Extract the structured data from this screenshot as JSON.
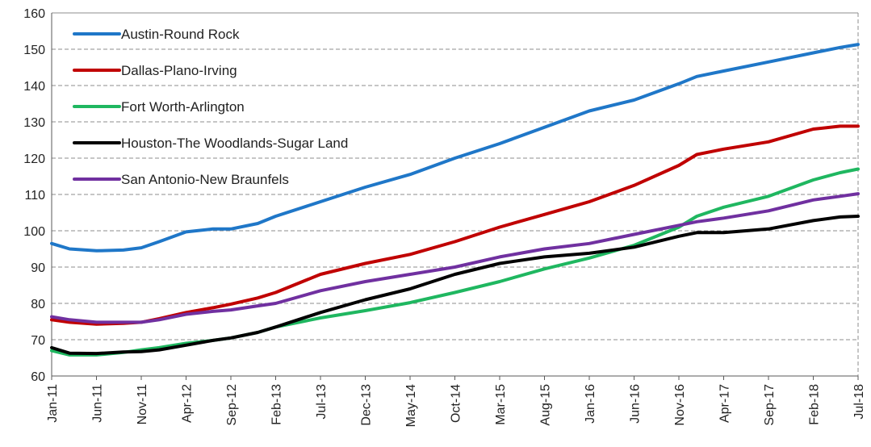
{
  "chart_data": {
    "type": "line",
    "title": "",
    "xlabel": "",
    "ylabel": "",
    "ylim": [
      60,
      160
    ],
    "yticks": [
      60,
      70,
      80,
      90,
      100,
      110,
      120,
      130,
      140,
      150,
      160
    ],
    "grid": "horizontal dashed",
    "legend_position": "top-left",
    "x_tick_labels": [
      "Jan-11",
      "Jun-11",
      "Nov-11",
      "Apr-12",
      "Sep-12",
      "Feb-13",
      "Jul-13",
      "Dec-13",
      "May-14",
      "Oct-14",
      "Mar-15",
      "Aug-15",
      "Jan-16",
      "Jun-16",
      "Nov-16",
      "Apr-17",
      "Sep-17",
      "Feb-18",
      "Jul-18"
    ],
    "x": [
      "Jan-11",
      "Mar-11",
      "Jun-11",
      "Sep-11",
      "Nov-11",
      "Jan-12",
      "Apr-12",
      "Jul-12",
      "Sep-12",
      "Dec-12",
      "Feb-13",
      "Jul-13",
      "Dec-13",
      "May-14",
      "Oct-14",
      "Mar-15",
      "Aug-15",
      "Jan-16",
      "Jun-16",
      "Nov-16",
      "Jan-17",
      "Apr-17",
      "Sep-17",
      "Feb-18",
      "May-18",
      "Jul-18"
    ],
    "series": [
      {
        "name": "Austin-Round Rock",
        "color": "#1F77C8",
        "values": [
          96.5,
          95.0,
          94.5,
          94.7,
          95.3,
          97.0,
          99.7,
          100.5,
          100.5,
          102.0,
          104.0,
          108.0,
          112.0,
          115.5,
          120.0,
          124.0,
          128.5,
          133.0,
          136.0,
          140.5,
          142.5,
          144.0,
          146.5,
          149.0,
          150.5,
          151.3
        ]
      },
      {
        "name": "Dallas-Plano-Irving",
        "color": "#C00000",
        "values": [
          75.5,
          74.8,
          74.3,
          74.5,
          74.8,
          75.8,
          77.5,
          78.8,
          79.8,
          81.5,
          83.0,
          88.0,
          91.0,
          93.5,
          97.0,
          101.0,
          104.5,
          108.0,
          112.5,
          118.0,
          121.0,
          122.5,
          124.5,
          128.0,
          128.8,
          128.8
        ]
      },
      {
        "name": "Fort Worth-Arlington",
        "color": "#1FB760",
        "values": [
          67.0,
          65.8,
          65.8,
          66.5,
          67.2,
          67.8,
          69.0,
          69.8,
          70.5,
          72.0,
          73.5,
          76.0,
          78.0,
          80.2,
          83.0,
          86.0,
          89.5,
          92.5,
          96.0,
          101.0,
          104.0,
          106.5,
          109.5,
          114.0,
          116.0,
          117.0
        ]
      },
      {
        "name": "Houston-The Woodlands-Sugar Land",
        "color": "#000000",
        "values": [
          67.8,
          66.3,
          66.2,
          66.6,
          66.7,
          67.2,
          68.5,
          69.8,
          70.5,
          72.0,
          73.5,
          77.5,
          81.0,
          84.0,
          88.0,
          91.0,
          92.8,
          93.8,
          95.5,
          98.5,
          99.5,
          99.5,
          100.5,
          102.8,
          103.8,
          104.0
        ]
      },
      {
        "name": "San Antonio-New Braunfels",
        "color": "#7030A0",
        "values": [
          76.3,
          75.5,
          74.8,
          74.8,
          74.8,
          75.5,
          77.0,
          77.8,
          78.2,
          79.3,
          80.0,
          83.5,
          86.0,
          88.0,
          90.0,
          92.8,
          95.0,
          96.5,
          99.0,
          101.5,
          102.5,
          103.5,
          105.5,
          108.5,
          109.5,
          110.2
        ]
      }
    ]
  }
}
